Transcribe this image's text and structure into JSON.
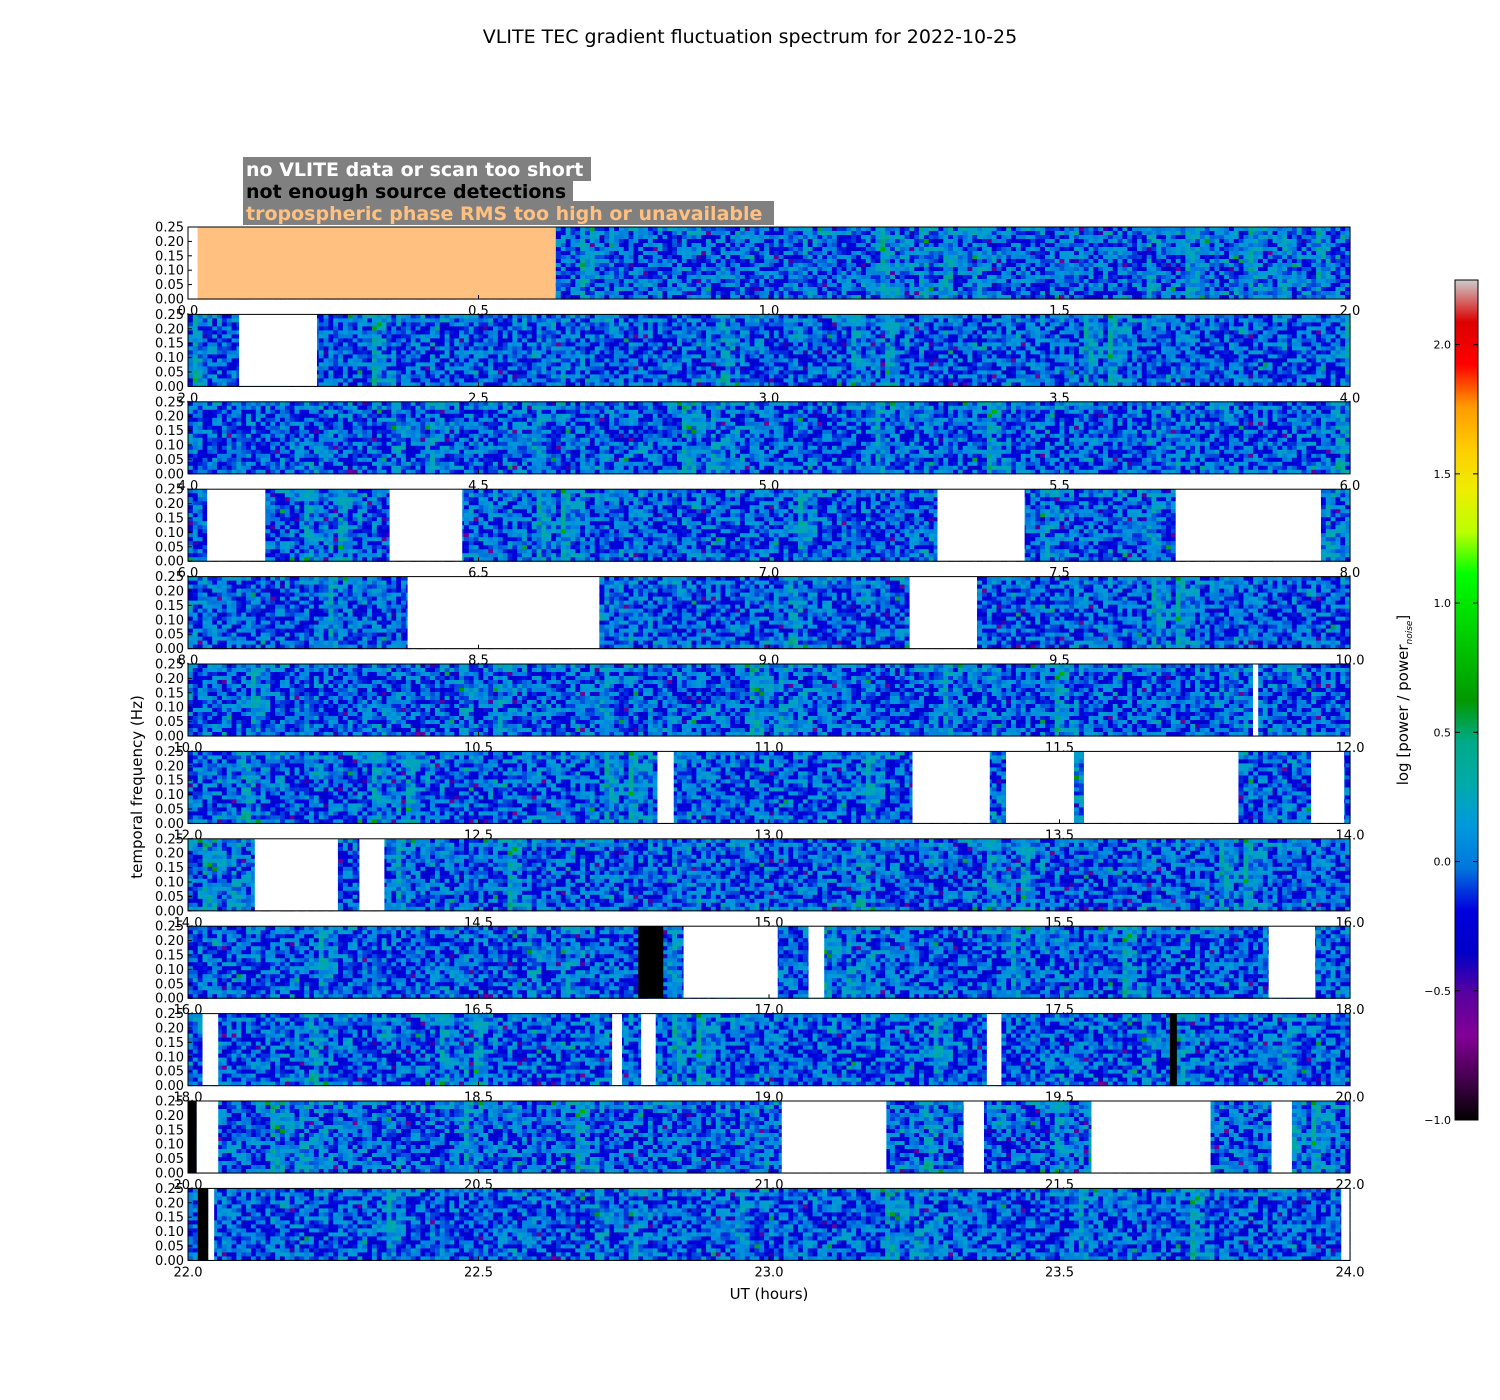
{
  "chart_data": {
    "type": "heatmap",
    "title": "VLITE TEC gradient fluctuation spectrum for 2022-10-25",
    "xlabel": "UT (hours)",
    "ylabel": "temporal frequency (Hz)",
    "colorbar_label": "log [power / power",
    "colorbar_label_sub": "noise",
    "colorbar_label_close": "]",
    "colorbar_range": [
      -1.0,
      2.25
    ],
    "colorbar_ticks": [
      "−1.0",
      "−0.5",
      "0.0",
      "0.5",
      "1.0",
      "1.5",
      "2.0"
    ],
    "colorbar_tick_values": [
      -1.0,
      -0.5,
      0.0,
      0.5,
      1.0,
      1.5,
      2.0
    ],
    "colormap": "nipy_spectral",
    "ylim": [
      0,
      0.25
    ],
    "y_ticks": [
      "0.00",
      "0.05",
      "0.10",
      "0.15",
      "0.20",
      "0.25"
    ],
    "y_tick_values": [
      0.0,
      0.05,
      0.1,
      0.15,
      0.2,
      0.25
    ],
    "legend": [
      {
        "label": "no VLITE data or scan too short",
        "text_color": "#ffffff",
        "box_color": "#808080"
      },
      {
        "label": "not enough source detections",
        "text_color": "#000000",
        "box_color": "#808080"
      },
      {
        "label": "tropospheric phase RMS too high or unavailable",
        "text_color": "#ffc080",
        "box_color": "#808080"
      }
    ],
    "legend_placement": "top-left",
    "flag_colors": {
      "no_data": "#ffffff",
      "few_detections": "#000000",
      "tropo": "#ffc080"
    },
    "panels": [
      {
        "xlim": [
          0,
          2
        ],
        "x_ticks": [
          "0.0",
          "0.5",
          "1.0",
          "1.5",
          "2.0"
        ],
        "x_tick_values": [
          0,
          0.5,
          1.0,
          1.5,
          2.0
        ],
        "flags": [
          {
            "type": "no_data",
            "start": 0.0,
            "end": 0.017
          },
          {
            "type": "tropo",
            "start": 0.017,
            "end": 0.633
          }
        ]
      },
      {
        "xlim": [
          2,
          4
        ],
        "x_ticks": [
          "2.0",
          "2.5",
          "3.0",
          "3.5",
          "4.0"
        ],
        "x_tick_values": [
          2,
          2.5,
          3.0,
          3.5,
          4.0
        ],
        "flags": [
          {
            "type": "no_data",
            "start": 2.088,
            "end": 2.222
          }
        ]
      },
      {
        "xlim": [
          4,
          6
        ],
        "x_ticks": [
          "4.0",
          "4.5",
          "5.0",
          "5.5",
          "6.0"
        ],
        "x_tick_values": [
          4,
          4.5,
          5.0,
          5.5,
          6.0
        ],
        "flags": []
      },
      {
        "xlim": [
          6,
          8
        ],
        "x_ticks": [
          "6.0",
          "6.5",
          "7.0",
          "7.5",
          "8.0"
        ],
        "x_tick_values": [
          6,
          6.5,
          7.0,
          7.5,
          8.0
        ],
        "flags": [
          {
            "type": "no_data",
            "start": 6.033,
            "end": 6.133
          },
          {
            "type": "no_data",
            "start": 6.347,
            "end": 6.472
          },
          {
            "type": "no_data",
            "start": 7.29,
            "end": 7.44
          },
          {
            "type": "no_data",
            "start": 7.7,
            "end": 7.95
          }
        ]
      },
      {
        "xlim": [
          8,
          10
        ],
        "x_ticks": [
          "8.0",
          "8.5",
          "9.0",
          "9.5",
          "10.0"
        ],
        "x_tick_values": [
          8,
          8.5,
          9.0,
          9.5,
          10.0
        ],
        "flags": [
          {
            "type": "no_data",
            "start": 8.378,
            "end": 8.708
          },
          {
            "type": "no_data",
            "start": 9.242,
            "end": 9.358
          }
        ]
      },
      {
        "xlim": [
          10,
          12
        ],
        "x_ticks": [
          "10.0",
          "10.5",
          "11.0",
          "11.5",
          "12.0"
        ],
        "x_tick_values": [
          10,
          10.5,
          11.0,
          11.5,
          12.0
        ],
        "flags": [
          {
            "type": "no_data",
            "start": 11.833,
            "end": 11.842
          }
        ]
      },
      {
        "xlim": [
          12,
          14
        ],
        "x_ticks": [
          "12.0",
          "12.5",
          "13.0",
          "13.5",
          "14.0"
        ],
        "x_tick_values": [
          12,
          12.5,
          13.0,
          13.5,
          14.0
        ],
        "flags": [
          {
            "type": "no_data",
            "start": 12.808,
            "end": 12.836
          },
          {
            "type": "no_data",
            "start": 13.247,
            "end": 13.38
          },
          {
            "type": "no_data",
            "start": 13.408,
            "end": 13.525
          },
          {
            "type": "no_data",
            "start": 13.542,
            "end": 13.808
          },
          {
            "type": "no_data",
            "start": 13.933,
            "end": 13.99
          }
        ]
      },
      {
        "xlim": [
          14,
          16
        ],
        "x_ticks": [
          "14.0",
          "14.5",
          "15.0",
          "15.5",
          "16.0"
        ],
        "x_tick_values": [
          14,
          14.5,
          15.0,
          15.5,
          16.0
        ],
        "flags": [
          {
            "type": "no_data",
            "start": 14.115,
            "end": 14.258
          },
          {
            "type": "no_data",
            "start": 14.295,
            "end": 14.338
          }
        ]
      },
      {
        "xlim": [
          16,
          18
        ],
        "x_ticks": [
          "16.0",
          "16.5",
          "17.0",
          "17.5",
          "18.0"
        ],
        "x_tick_values": [
          16,
          16.5,
          17.0,
          17.5,
          18.0
        ],
        "flags": [
          {
            "type": "few_detections",
            "start": 16.775,
            "end": 16.818
          },
          {
            "type": "no_data",
            "start": 16.853,
            "end": 17.015
          },
          {
            "type": "no_data",
            "start": 17.068,
            "end": 17.095
          },
          {
            "type": "no_data",
            "start": 17.86,
            "end": 17.94
          }
        ]
      },
      {
        "xlim": [
          18,
          20
        ],
        "x_ticks": [
          "18.0",
          "18.5",
          "19.0",
          "19.5",
          "20.0"
        ],
        "x_tick_values": [
          18,
          18.5,
          19.0,
          19.5,
          20.0
        ],
        "flags": [
          {
            "type": "no_data",
            "start": 18.025,
            "end": 18.052
          },
          {
            "type": "no_data",
            "start": 18.73,
            "end": 18.747
          },
          {
            "type": "no_data",
            "start": 18.78,
            "end": 18.805
          },
          {
            "type": "no_data",
            "start": 19.375,
            "end": 19.4
          },
          {
            "type": "few_detections",
            "start": 19.69,
            "end": 19.702
          }
        ]
      },
      {
        "xlim": [
          20,
          22
        ],
        "x_ticks": [
          "20.0",
          "20.5",
          "21.0",
          "21.5",
          "22.0"
        ],
        "x_tick_values": [
          20,
          20.5,
          21.0,
          21.5,
          22.0
        ],
        "flags": [
          {
            "type": "few_detections",
            "start": 20.0,
            "end": 20.015
          },
          {
            "type": "no_data",
            "start": 20.015,
            "end": 20.052
          },
          {
            "type": "no_data",
            "start": 21.022,
            "end": 21.202
          },
          {
            "type": "no_data",
            "start": 21.335,
            "end": 21.37
          },
          {
            "type": "no_data",
            "start": 21.555,
            "end": 21.76
          },
          {
            "type": "no_data",
            "start": 21.865,
            "end": 21.9
          }
        ]
      },
      {
        "xlim": [
          22,
          24
        ],
        "x_ticks": [
          "22.0",
          "22.5",
          "23.0",
          "23.5",
          "24.0"
        ],
        "x_tick_values": [
          22,
          22.5,
          23.0,
          23.5,
          24.0
        ],
        "flags": [
          {
            "type": "few_detections",
            "start": 22.017,
            "end": 22.035
          },
          {
            "type": "no_data",
            "start": 22.035,
            "end": 22.045
          },
          {
            "type": "no_data",
            "start": 23.985,
            "end": 24.0
          }
        ]
      }
    ]
  }
}
